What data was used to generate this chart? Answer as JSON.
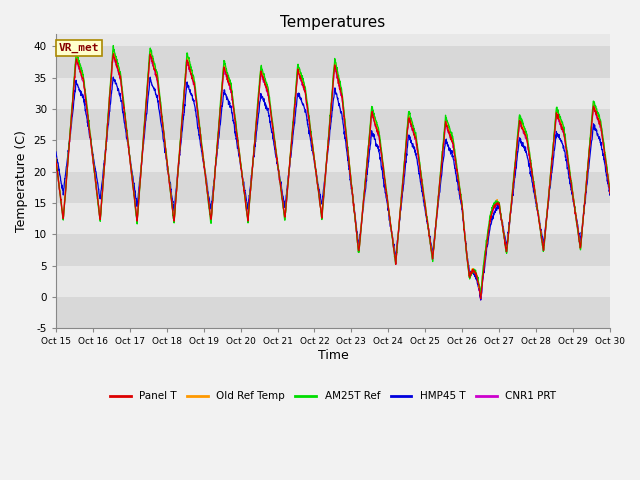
{
  "title": "Temperatures",
  "xlabel": "Time",
  "ylabel": "Temperature (C)",
  "ylim": [
    -5,
    42
  ],
  "yticks": [
    -5,
    0,
    5,
    10,
    15,
    20,
    25,
    30,
    35,
    40
  ],
  "xtick_labels": [
    "Oct 15",
    "Oct 16",
    "Oct 17",
    "Oct 18",
    "Oct 19",
    "Oct 20",
    "Oct 21",
    "Oct 22",
    "Oct 23",
    "Oct 24",
    "Oct 25",
    "Oct 26",
    "Oct 27",
    "Oct 28",
    "Oct 29",
    "Oct 30"
  ],
  "station_label": "VR_met",
  "line_colors": {
    "Panel T": "#dd0000",
    "Old Ref Temp": "#ff9900",
    "AM25T Ref": "#00dd00",
    "HMP45 T": "#0000dd",
    "CNR1 PRT": "#cc00cc"
  },
  "band_colors": [
    "#d8d8d8",
    "#e8e8e8"
  ],
  "title_fontsize": 11,
  "label_fontsize": 9,
  "tick_fontsize": 8
}
